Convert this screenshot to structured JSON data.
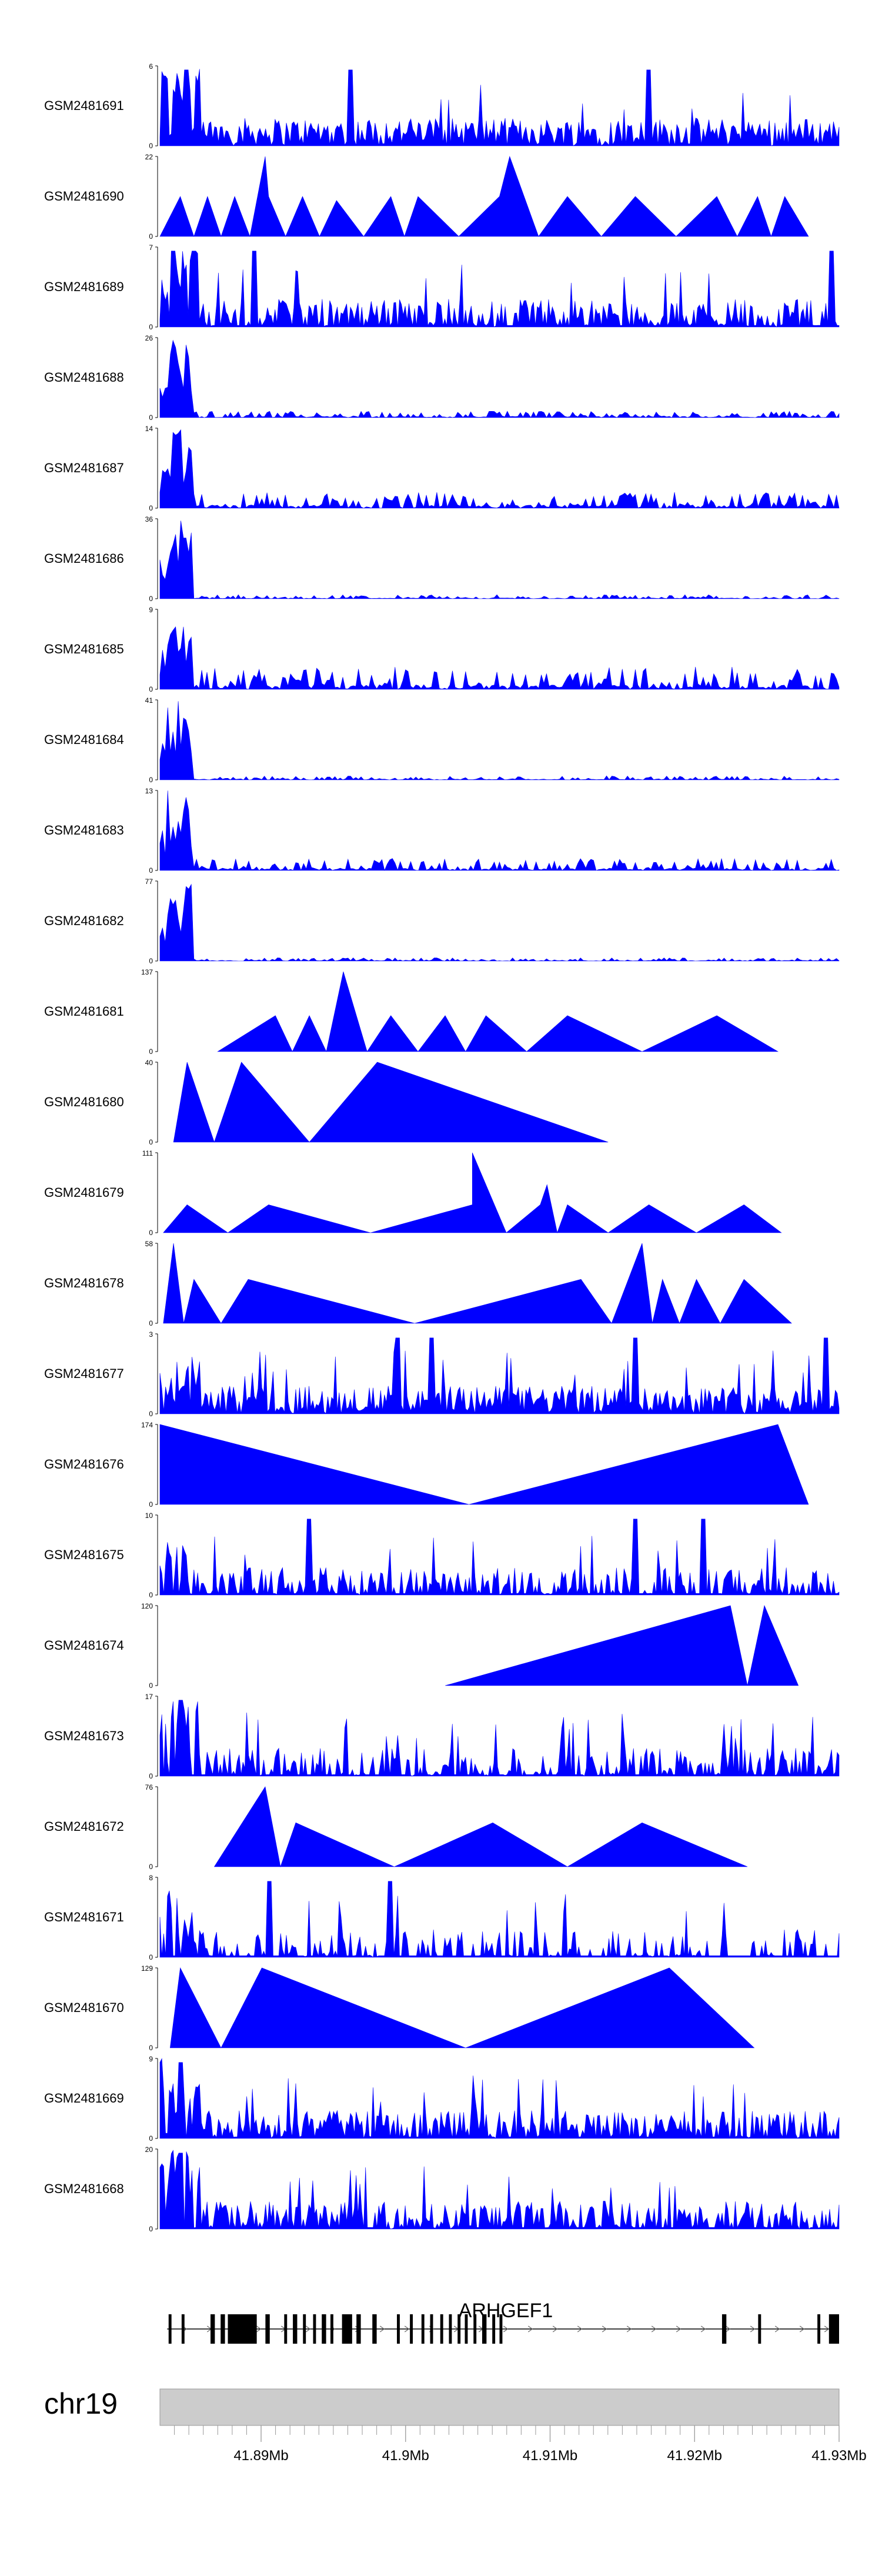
{
  "chart_data": {
    "type": "area",
    "title": "",
    "chromosome": "chr19",
    "gene": "ARHGEF1",
    "x_range_mb": [
      41.883,
      41.93
    ],
    "genome_axis": {
      "ticks": [
        41.89,
        41.9,
        41.91,
        41.92,
        41.93
      ],
      "tick_labels": [
        "41.89Mb",
        "41.9Mb",
        "41.91Mb",
        "41.92Mb",
        "41.93Mb"
      ]
    },
    "fill_color": "#0000ff",
    "series": [
      {
        "name": "GSM2481691",
        "ymax": 6,
        "ymax_label": "6",
        "ymin_label": "0",
        "pattern": "noise",
        "density": 1.0,
        "early_peak": 1.0,
        "spikes": [
          0.04,
          0.28,
          0.72
        ]
      },
      {
        "name": "GSM2481690",
        "ymax": 22,
        "ymax_label": "22",
        "ymin_label": "0",
        "pattern": "sparse",
        "peaks": [
          [
            0.03,
            0.5
          ],
          [
            0.07,
            0.5
          ],
          [
            0.11,
            0.5
          ],
          [
            0.16,
            0.5
          ],
          [
            0.21,
            0.5
          ],
          [
            0.26,
            0.45
          ],
          [
            0.155,
            1.0
          ],
          [
            0.34,
            0.5
          ],
          [
            0.38,
            0.5
          ],
          [
            0.5,
            0.5
          ],
          [
            0.515,
            1.0
          ],
          [
            0.6,
            0.5
          ],
          [
            0.7,
            0.5
          ],
          [
            0.82,
            0.5
          ],
          [
            0.88,
            0.5
          ],
          [
            0.92,
            0.5
          ]
        ],
        "start": 0.0,
        "end": 0.955
      },
      {
        "name": "GSM2481689",
        "ymax": 7,
        "ymax_label": "7",
        "ymin_label": "0",
        "pattern": "noise",
        "density": 0.8,
        "early_peak": 1.0,
        "spikes": [
          0.02,
          0.05,
          0.14,
          0.99
        ]
      },
      {
        "name": "GSM2481688",
        "ymax": 26,
        "ymax_label": "26",
        "ymin_label": "0",
        "pattern": "enriched",
        "early_peak": 1.0,
        "tail": 0.08
      },
      {
        "name": "GSM2481687",
        "ymax": 14,
        "ymax_label": "14",
        "ymin_label": "0",
        "pattern": "enriched",
        "early_peak": 1.0,
        "tail": 0.2
      },
      {
        "name": "GSM2481686",
        "ymax": 36,
        "ymax_label": "36",
        "ymin_label": "0",
        "pattern": "enriched",
        "early_peak": 1.0,
        "tail": 0.05
      },
      {
        "name": "GSM2481685",
        "ymax": 9,
        "ymax_label": "9",
        "ymin_label": "0",
        "pattern": "enriched",
        "early_peak": 1.0,
        "tail": 0.28
      },
      {
        "name": "GSM2481684",
        "ymax": 41,
        "ymax_label": "41",
        "ymin_label": "0",
        "pattern": "enriched",
        "early_peak": 1.0,
        "tail": 0.05
      },
      {
        "name": "GSM2481683",
        "ymax": 13,
        "ymax_label": "13",
        "ymin_label": "0",
        "pattern": "enriched",
        "early_peak": 1.0,
        "tail": 0.15
      },
      {
        "name": "GSM2481682",
        "ymax": 77,
        "ymax_label": "77",
        "ymin_label": "0",
        "pattern": "enriched",
        "early_peak": 1.0,
        "tail": 0.04
      },
      {
        "name": "GSM2481681",
        "ymax": 137,
        "ymax_label": "137",
        "ymin_label": "0",
        "pattern": "sparse",
        "peaks": [
          [
            0.17,
            0.45
          ],
          [
            0.22,
            0.45
          ],
          [
            0.27,
            1.0
          ],
          [
            0.34,
            0.45
          ],
          [
            0.42,
            0.45
          ],
          [
            0.48,
            0.45
          ],
          [
            0.6,
            0.45
          ],
          [
            0.82,
            0.45
          ]
        ],
        "start": 0.085,
        "end": 0.91
      },
      {
        "name": "GSM2481680",
        "ymax": 40,
        "ymax_label": "40",
        "ymin_label": "0",
        "pattern": "sparse",
        "peaks": [
          [
            0.04,
            1.0
          ],
          [
            0.12,
            1.0
          ],
          [
            0.32,
            1.0
          ]
        ],
        "start": 0.02,
        "end": 0.66
      },
      {
        "name": "GSM2481679",
        "ymax": 111,
        "ymax_label": "111",
        "ymin_label": "0",
        "pattern": "sparse",
        "peaks": [
          [
            0.04,
            0.35
          ],
          [
            0.16,
            0.35
          ],
          [
            0.46,
            0.35
          ],
          [
            0.46,
            1.0
          ],
          [
            0.56,
            0.35
          ],
          [
            0.57,
            0.6
          ],
          [
            0.6,
            0.35
          ],
          [
            0.72,
            0.35
          ],
          [
            0.86,
            0.35
          ]
        ],
        "start": 0.005,
        "end": 0.915
      },
      {
        "name": "GSM2481678",
        "ymax": 58,
        "ymax_label": "58",
        "ymin_label": "0",
        "pattern": "sparse",
        "peaks": [
          [
            0.02,
            1.0
          ],
          [
            0.05,
            0.55
          ],
          [
            0.13,
            0.55
          ],
          [
            0.62,
            0.55
          ],
          [
            0.71,
            1.0
          ],
          [
            0.74,
            0.55
          ],
          [
            0.79,
            0.55
          ],
          [
            0.86,
            0.55
          ]
        ],
        "start": 0.005,
        "end": 0.93
      },
      {
        "name": "GSM2481677",
        "ymax": 3,
        "ymax_label": "3",
        "ymin_label": "0",
        "pattern": "noise",
        "density": 1.0,
        "early_peak": 0.7,
        "spikes": [
          0.35,
          0.4,
          0.7,
          0.98
        ]
      },
      {
        "name": "GSM2481676",
        "ymax": 174,
        "ymax_label": "174",
        "ymin_label": "0",
        "pattern": "sparse",
        "peaks": [
          [
            0.0,
            1.0
          ],
          [
            0.91,
            1.0
          ]
        ],
        "start": 0.0,
        "end": 0.955
      },
      {
        "name": "GSM2481675",
        "ymax": 10,
        "ymax_label": "10",
        "ymin_label": "0",
        "pattern": "noise",
        "density": 0.7,
        "early_peak": 0.7,
        "spikes": [
          0.22,
          0.7,
          0.8
        ]
      },
      {
        "name": "GSM2481674",
        "ymax": 120,
        "ymax_label": "120",
        "ymin_label": "0",
        "pattern": "sparse",
        "peaks": [
          [
            0.84,
            1.0
          ],
          [
            0.89,
            1.0
          ]
        ],
        "start": 0.42,
        "end": 0.94
      },
      {
        "name": "GSM2481673",
        "ymax": 17,
        "ymax_label": "17",
        "ymin_label": "0",
        "pattern": "noise",
        "density": 0.6,
        "early_peak": 1.0,
        "spikes": [
          0.03
        ]
      },
      {
        "name": "GSM2481672",
        "ymax": 76,
        "ymax_label": "76",
        "ymin_label": "0",
        "pattern": "sparse",
        "peaks": [
          [
            0.155,
            1.0
          ],
          [
            0.2,
            0.55
          ],
          [
            0.49,
            0.55
          ],
          [
            0.71,
            0.55
          ]
        ],
        "start": 0.08,
        "end": 0.865
      },
      {
        "name": "GSM2481671",
        "ymax": 8,
        "ymax_label": "8",
        "ymin_label": "0",
        "pattern": "noise",
        "density": 0.45,
        "early_peak": 0.9,
        "spikes": [
          0.16,
          0.34
        ]
      },
      {
        "name": "GSM2481670",
        "ymax": 129,
        "ymax_label": "129",
        "ymin_label": "0",
        "pattern": "sparse",
        "peaks": [
          [
            0.03,
            1.0
          ],
          [
            0.15,
            1.0
          ],
          [
            0.75,
            1.0
          ]
        ],
        "start": 0.015,
        "end": 0.875
      },
      {
        "name": "GSM2481669",
        "ymax": 9,
        "ymax_label": "9",
        "ymin_label": "0",
        "pattern": "noise",
        "density": 0.8,
        "early_peak": 1.0,
        "spikes": [
          0.03
        ]
      },
      {
        "name": "GSM2481668",
        "ymax": 20,
        "ymax_label": "20",
        "ymin_label": "0",
        "pattern": "noise",
        "density": 0.75,
        "early_peak": 1.0,
        "spikes": [
          0.03
        ]
      }
    ],
    "gene_model": {
      "name": "ARHGEF1",
      "strand": "+",
      "start_mb": 41.8835,
      "end_mb": 41.93,
      "exons_mb": [
        [
          41.8836,
          41.8838
        ],
        [
          41.8845,
          41.8847
        ],
        [
          41.8865,
          41.8868
        ],
        [
          41.8872,
          41.8875
        ],
        [
          41.8877,
          41.8897
        ],
        [
          41.8903,
          41.8906
        ],
        [
          41.8916,
          41.8918
        ],
        [
          41.8922,
          41.8925
        ],
        [
          41.8929,
          41.8931
        ],
        [
          41.8936,
          41.8938
        ],
        [
          41.8942,
          41.8945
        ],
        [
          41.8948,
          41.895
        ],
        [
          41.8956,
          41.8963
        ],
        [
          41.8966,
          41.8969
        ],
        [
          41.8977,
          41.898
        ],
        [
          41.8994,
          41.8996
        ],
        [
          41.9003,
          41.9005
        ],
        [
          41.9011,
          41.9013
        ],
        [
          41.9017,
          41.9019
        ],
        [
          41.9024,
          41.9026
        ],
        [
          41.903,
          41.9032
        ],
        [
          41.9036,
          41.9038
        ],
        [
          41.9041,
          41.9043
        ],
        [
          41.9047,
          41.9049
        ],
        [
          41.9053,
          41.9056
        ],
        [
          41.906,
          41.9062
        ],
        [
          41.9065,
          41.9067
        ],
        [
          41.9219,
          41.9222
        ],
        [
          41.9244,
          41.9246
        ],
        [
          41.9285,
          41.9287
        ],
        [
          41.9293,
          41.93
        ]
      ]
    }
  }
}
